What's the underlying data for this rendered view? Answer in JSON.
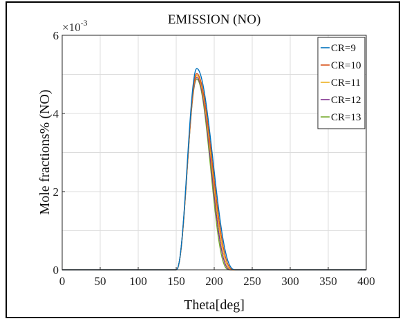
{
  "chart_data": {
    "type": "line",
    "title": "EMISSION (NO)",
    "xlabel": "Theta[deg]",
    "ylabel": "Mole fractions% (NO)",
    "y_multiplier_label": "×10",
    "y_multiplier_exponent": "-3",
    "xlim": [
      0,
      400
    ],
    "ylim": [
      0,
      6
    ],
    "xticks": [
      0,
      50,
      100,
      150,
      200,
      250,
      300,
      350,
      400
    ],
    "yticks": [
      0,
      2,
      4,
      6
    ],
    "grid": true,
    "legend_position": "top-right",
    "series": [
      {
        "name": "CR=9",
        "color": "#0072BD",
        "peak": 5.15,
        "peak_x": 177,
        "rise_start": 150,
        "decay_end": 228
      },
      {
        "name": "CR=10",
        "color": "#D95319",
        "peak": 5.02,
        "peak_x": 177,
        "rise_start": 150,
        "decay_end": 226
      },
      {
        "name": "CR=11",
        "color": "#EDB120",
        "peak": 4.97,
        "peak_x": 177,
        "rise_start": 150,
        "decay_end": 224
      },
      {
        "name": "CR=12",
        "color": "#7E2F8E",
        "peak": 4.92,
        "peak_x": 177,
        "rise_start": 150,
        "decay_end": 222
      },
      {
        "name": "CR=13",
        "color": "#77AC30",
        "peak": 4.88,
        "peak_x": 177,
        "rise_start": 150,
        "decay_end": 220
      }
    ]
  }
}
